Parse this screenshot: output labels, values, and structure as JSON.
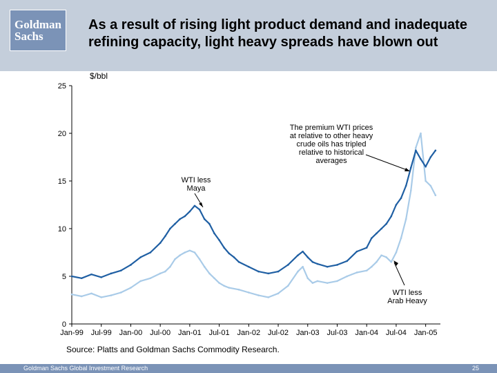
{
  "slide": {
    "logo_line1": "Goldman",
    "logo_line2": "Sachs",
    "title": "As a result of rising light product demand and inadequate refining capacity, light heavy spreads have blown out",
    "source": "Source: Platts and Goldman Sachs Commodity Research.",
    "footer": "Goldman Sachs Global Investment Research",
    "page_number": "25",
    "header_color": "#c4cedb",
    "brand_color": "#7b93b7"
  },
  "chart_data": {
    "type": "line",
    "ylabel": "$/bbl",
    "ylim": [
      0,
      25
    ],
    "y_ticks": [
      0,
      5,
      10,
      15,
      20,
      25
    ],
    "x_ticks": [
      "Jan-99",
      "Jul-99",
      "Jan-00",
      "Jul-00",
      "Jan-01",
      "Jul-01",
      "Jan-02",
      "Jul-02",
      "Jan-03",
      "Jul-03",
      "Jan-04",
      "Jul-04",
      "Jan-05"
    ],
    "x_unit": "months since Jan-99",
    "xlim": [
      0,
      75
    ],
    "grid": false,
    "series": [
      {
        "name": "WTI less Maya",
        "color": "#1f5fa3",
        "points": [
          [
            0,
            5.0
          ],
          [
            2,
            4.8
          ],
          [
            4,
            5.2
          ],
          [
            6,
            4.9
          ],
          [
            8,
            5.3
          ],
          [
            10,
            5.6
          ],
          [
            12,
            6.2
          ],
          [
            14,
            7.0
          ],
          [
            16,
            7.5
          ],
          [
            18,
            8.5
          ],
          [
            19,
            9.2
          ],
          [
            20,
            10.0
          ],
          [
            21,
            10.5
          ],
          [
            22,
            11.0
          ],
          [
            23,
            11.3
          ],
          [
            24,
            11.8
          ],
          [
            25,
            12.4
          ],
          [
            26,
            12.0
          ],
          [
            27,
            11.0
          ],
          [
            28,
            10.5
          ],
          [
            29,
            9.5
          ],
          [
            30,
            8.8
          ],
          [
            31,
            8.0
          ],
          [
            32,
            7.4
          ],
          [
            33,
            7.0
          ],
          [
            34,
            6.5
          ],
          [
            36,
            6.0
          ],
          [
            38,
            5.5
          ],
          [
            40,
            5.3
          ],
          [
            42,
            5.5
          ],
          [
            44,
            6.2
          ],
          [
            46,
            7.2
          ],
          [
            47,
            7.6
          ],
          [
            48,
            7.0
          ],
          [
            49,
            6.5
          ],
          [
            50,
            6.3
          ],
          [
            52,
            6.0
          ],
          [
            54,
            6.2
          ],
          [
            56,
            6.6
          ],
          [
            58,
            7.6
          ],
          [
            60,
            8.0
          ],
          [
            61,
            9.0
          ],
          [
            62,
            9.5
          ],
          [
            63,
            10.0
          ],
          [
            64,
            10.5
          ],
          [
            65,
            11.3
          ],
          [
            66,
            12.5
          ],
          [
            67,
            13.2
          ],
          [
            68,
            14.5
          ],
          [
            69,
            16.4
          ],
          [
            70,
            18.2
          ],
          [
            71,
            17.3
          ],
          [
            72,
            16.5
          ],
          [
            73,
            17.5
          ],
          [
            74,
            18.2
          ]
        ]
      },
      {
        "name": "WTI less Arab Heavy",
        "color": "#a9cbe8",
        "points": [
          [
            0,
            3.1
          ],
          [
            2,
            2.9
          ],
          [
            4,
            3.2
          ],
          [
            6,
            2.8
          ],
          [
            8,
            3.0
          ],
          [
            10,
            3.3
          ],
          [
            12,
            3.8
          ],
          [
            14,
            4.5
          ],
          [
            16,
            4.8
          ],
          [
            18,
            5.3
          ],
          [
            19,
            5.5
          ],
          [
            20,
            6.0
          ],
          [
            21,
            6.8
          ],
          [
            22,
            7.2
          ],
          [
            23,
            7.5
          ],
          [
            24,
            7.7
          ],
          [
            25,
            7.5
          ],
          [
            26,
            6.8
          ],
          [
            27,
            6.0
          ],
          [
            28,
            5.3
          ],
          [
            29,
            4.8
          ],
          [
            30,
            4.3
          ],
          [
            31,
            4.0
          ],
          [
            32,
            3.8
          ],
          [
            34,
            3.6
          ],
          [
            36,
            3.3
          ],
          [
            38,
            3.0
          ],
          [
            40,
            2.8
          ],
          [
            42,
            3.2
          ],
          [
            44,
            4.0
          ],
          [
            46,
            5.5
          ],
          [
            47,
            6.0
          ],
          [
            48,
            4.8
          ],
          [
            49,
            4.3
          ],
          [
            50,
            4.5
          ],
          [
            52,
            4.3
          ],
          [
            54,
            4.5
          ],
          [
            56,
            5.0
          ],
          [
            58,
            5.4
          ],
          [
            60,
            5.6
          ],
          [
            61,
            6.0
          ],
          [
            62,
            6.5
          ],
          [
            63,
            7.2
          ],
          [
            64,
            7.0
          ],
          [
            65,
            6.5
          ],
          [
            66,
            7.5
          ],
          [
            67,
            9.0
          ],
          [
            68,
            11.0
          ],
          [
            69,
            14.0
          ],
          [
            70,
            18.5
          ],
          [
            71,
            20.0
          ],
          [
            72,
            15.0
          ],
          [
            73,
            14.5
          ],
          [
            74,
            13.5
          ]
        ]
      }
    ],
    "annotations": [
      {
        "text": [
          "WTI less",
          "Maya"
        ]
      },
      {
        "text": [
          "The premium WTI prices",
          "at relative to other heavy",
          "crude oils has tripled",
          "relative to historical",
          "averages"
        ]
      },
      {
        "text": [
          "WTI less",
          "Arab Heavy"
        ]
      }
    ]
  }
}
